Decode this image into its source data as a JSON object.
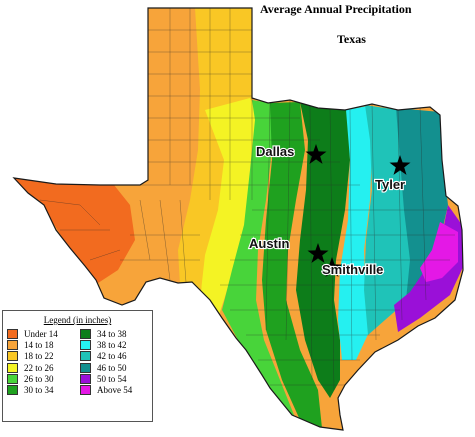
{
  "title": "Average Annual Precipitation",
  "subtitle": "Texas",
  "legend": {
    "title": "Legend (in inches)",
    "items": [
      {
        "label": "Under 14",
        "color": "#f26b1f"
      },
      {
        "label": "14 to 18",
        "color": "#f7a43a"
      },
      {
        "label": "18 to 22",
        "color": "#f9c725"
      },
      {
        "label": "22 to 26",
        "color": "#f4f324"
      },
      {
        "label": "26 to 30",
        "color": "#48d43a"
      },
      {
        "label": "30 to 34",
        "color": "#1fa11f"
      },
      {
        "label": "34 to 38",
        "color": "#0d7d1a"
      },
      {
        "label": "38 to 42",
        "color": "#25f0f0"
      },
      {
        "label": "42 to 46",
        "color": "#1fc3b8"
      },
      {
        "label": "46 to 50",
        "color": "#13908f"
      },
      {
        "label": "50 to 54",
        "color": "#9a10d8"
      },
      {
        "label": "Above 54",
        "color": "#e418e6"
      }
    ]
  },
  "cities": [
    {
      "name": "Dallas"
    },
    {
      "name": "Tyler"
    },
    {
      "name": "Austin"
    },
    {
      "name": "Smithville"
    }
  ]
}
